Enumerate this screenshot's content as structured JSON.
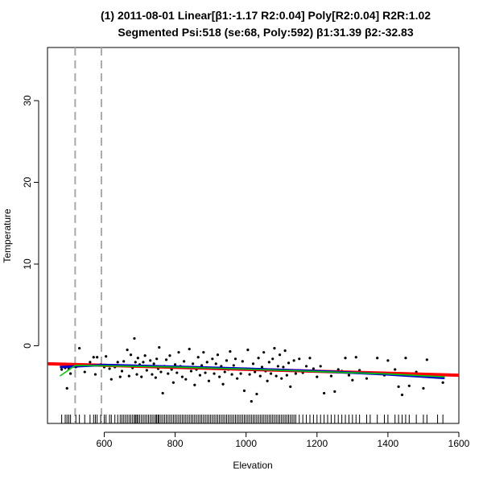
{
  "chart_data": {
    "type": "scatter",
    "title": "(1) 2011-08-01 Linear[β1:-1.17 R2:0.04] Poly[R2:0.04] R2R:1.02",
    "subtitle": "Segmented Psi:518 (se:68, Poly:592) β1:31.39 β2:-32.83",
    "xlabel": "Elevation",
    "ylabel": "Temperature",
    "xlim": [
      440,
      1600
    ],
    "ylim": [
      -9.5,
      36.5
    ],
    "xticks": [
      600,
      800,
      1000,
      1200,
      1400,
      1600
    ],
    "yticks": [
      0,
      10,
      20,
      30
    ],
    "grid": false,
    "legend": "none",
    "colors": {
      "points": "#000000",
      "rug": "#000000",
      "linear": "#ff0000",
      "poly": "#0000cc",
      "segmented": "#00cc00",
      "vlines": "#aaaaaa"
    },
    "vlines": [
      518,
      592
    ],
    "points": [
      [
        480,
        -2.9
      ],
      [
        490,
        -2.7
      ],
      [
        495,
        -5.2
      ],
      [
        500,
        -2.8
      ],
      [
        505,
        -3.4
      ],
      [
        520,
        -2.6
      ],
      [
        530,
        -0.3
      ],
      [
        545,
        -3.2
      ],
      [
        560,
        -2.0
      ],
      [
        570,
        -1.4
      ],
      [
        575,
        -3.5
      ],
      [
        580,
        -1.4
      ],
      [
        590,
        -2.3
      ],
      [
        600,
        -2.6
      ],
      [
        605,
        -1.3
      ],
      [
        615,
        -2.8
      ],
      [
        620,
        -4.1
      ],
      [
        630,
        -2.6
      ],
      [
        638,
        -2.0
      ],
      [
        645,
        -3.8
      ],
      [
        650,
        -3.1
      ],
      [
        655,
        -1.9
      ],
      [
        660,
        -2.5
      ],
      [
        665,
        -0.5
      ],
      [
        670,
        -3.7
      ],
      [
        675,
        -1.1
      ],
      [
        680,
        -2.7
      ],
      [
        685,
        0.9
      ],
      [
        688,
        -2.0
      ],
      [
        692,
        -3.5
      ],
      [
        695,
        -1.5
      ],
      [
        700,
        -2.3
      ],
      [
        705,
        -3.8
      ],
      [
        710,
        -2.0
      ],
      [
        715,
        -1.2
      ],
      [
        720,
        -3.0
      ],
      [
        725,
        -2.5
      ],
      [
        730,
        -1.8
      ],
      [
        735,
        -3.5
      ],
      [
        740,
        -2.2
      ],
      [
        745,
        -3.9
      ],
      [
        748,
        -1.6
      ],
      [
        752,
        -2.8
      ],
      [
        755,
        -0.2
      ],
      [
        760,
        -3.2
      ],
      [
        765,
        -5.8
      ],
      [
        770,
        -2.5
      ],
      [
        775,
        -1.7
      ],
      [
        780,
        -3.4
      ],
      [
        785,
        -1.2
      ],
      [
        790,
        -2.9
      ],
      [
        795,
        -4.5
      ],
      [
        800,
        -2.3
      ],
      [
        805,
        -3.3
      ],
      [
        810,
        -0.8
      ],
      [
        815,
        -2.5
      ],
      [
        820,
        -3.8
      ],
      [
        825,
        -1.9
      ],
      [
        830,
        -4.1
      ],
      [
        835,
        -2.6
      ],
      [
        840,
        -0.4
      ],
      [
        845,
        -3.1
      ],
      [
        850,
        -2.2
      ],
      [
        855,
        -4.8
      ],
      [
        860,
        -2.9
      ],
      [
        865,
        -1.4
      ],
      [
        870,
        -3.6
      ],
      [
        875,
        -2.4
      ],
      [
        880,
        -0.8
      ],
      [
        885,
        -3.3
      ],
      [
        890,
        -2.0
      ],
      [
        895,
        -4.3
      ],
      [
        900,
        -2.7
      ],
      [
        905,
        -1.6
      ],
      [
        910,
        -3.4
      ],
      [
        915,
        -2.2
      ],
      [
        920,
        -1.1
      ],
      [
        925,
        -3.8
      ],
      [
        930,
        -2.5
      ],
      [
        935,
        -4.7
      ],
      [
        940,
        -3.2
      ],
      [
        945,
        -1.8
      ],
      [
        950,
        -2.9
      ],
      [
        955,
        -0.7
      ],
      [
        960,
        -3.5
      ],
      [
        965,
        -2.4
      ],
      [
        970,
        -1.6
      ],
      [
        975,
        -4.0
      ],
      [
        980,
        -2.9
      ],
      [
        985,
        -3.4
      ],
      [
        990,
        -1.9
      ],
      [
        995,
        -5.5
      ],
      [
        1000,
        -2.8
      ],
      [
        1005,
        -0.5
      ],
      [
        1010,
        -3.5
      ],
      [
        1015,
        -6.8
      ],
      [
        1020,
        -2.2
      ],
      [
        1025,
        -3.2
      ],
      [
        1030,
        -5.9
      ],
      [
        1035,
        -1.5
      ],
      [
        1040,
        -3.7
      ],
      [
        1045,
        -2.6
      ],
      [
        1050,
        -0.8
      ],
      [
        1055,
        -3.1
      ],
      [
        1060,
        -4.3
      ],
      [
        1065,
        -2.0
      ],
      [
        1070,
        -3.4
      ],
      [
        1075,
        -1.6
      ],
      [
        1080,
        -0.3
      ],
      [
        1085,
        -3.7
      ],
      [
        1090,
        -2.5
      ],
      [
        1095,
        -1.1
      ],
      [
        1100,
        -4.0
      ],
      [
        1105,
        -2.6
      ],
      [
        1110,
        -0.6
      ],
      [
        1115,
        -3.6
      ],
      [
        1120,
        -2.1
      ],
      [
        1125,
        -5.0
      ],
      [
        1130,
        -3.0
      ],
      [
        1135,
        -1.8
      ],
      [
        1140,
        -3.4
      ],
      [
        1150,
        -1.6
      ],
      [
        1160,
        -3.3
      ],
      [
        1170,
        -2.5
      ],
      [
        1180,
        -1.5
      ],
      [
        1190,
        -2.8
      ],
      [
        1200,
        -3.8
      ],
      [
        1210,
        -2.5
      ],
      [
        1220,
        -5.8
      ],
      [
        1230,
        -3.2
      ],
      [
        1240,
        -3.7
      ],
      [
        1250,
        -5.6
      ],
      [
        1260,
        -2.9
      ],
      [
        1270,
        -3.1
      ],
      [
        1280,
        -1.5
      ],
      [
        1290,
        -3.6
      ],
      [
        1300,
        -4.2
      ],
      [
        1310,
        -1.4
      ],
      [
        1320,
        -3.0
      ],
      [
        1340,
        -4.0
      ],
      [
        1350,
        -3.3
      ],
      [
        1370,
        -1.5
      ],
      [
        1390,
        -3.6
      ],
      [
        1400,
        -1.8
      ],
      [
        1420,
        -2.9
      ],
      [
        1430,
        -5.0
      ],
      [
        1440,
        -6.0
      ],
      [
        1450,
        -1.5
      ],
      [
        1460,
        -4.9
      ],
      [
        1480,
        -3.2
      ],
      [
        1500,
        -5.2
      ],
      [
        1510,
        -1.7
      ],
      [
        1540,
        -3.8
      ],
      [
        1555,
        -4.5
      ]
    ],
    "rug": [
      480,
      490,
      495,
      500,
      505,
      520,
      530,
      545,
      560,
      570,
      575,
      580,
      590,
      600,
      605,
      615,
      620,
      630,
      638,
      645,
      650,
      655,
      660,
      665,
      670,
      675,
      680,
      685,
      688,
      692,
      695,
      700,
      705,
      710,
      715,
      720,
      725,
      730,
      735,
      740,
      745,
      748,
      752,
      755,
      760,
      765,
      770,
      775,
      780,
      785,
      790,
      795,
      800,
      805,
      810,
      815,
      820,
      825,
      830,
      835,
      840,
      845,
      850,
      855,
      860,
      865,
      870,
      875,
      880,
      885,
      890,
      895,
      900,
      905,
      910,
      915,
      920,
      925,
      930,
      935,
      940,
      945,
      950,
      955,
      960,
      965,
      970,
      975,
      980,
      985,
      990,
      995,
      1000,
      1005,
      1010,
      1015,
      1020,
      1025,
      1030,
      1035,
      1040,
      1045,
      1050,
      1055,
      1060,
      1065,
      1070,
      1075,
      1080,
      1085,
      1090,
      1095,
      1100,
      1105,
      1110,
      1115,
      1120,
      1125,
      1130,
      1135,
      1140,
      1150,
      1160,
      1170,
      1180,
      1190,
      1200,
      1210,
      1220,
      1230,
      1240,
      1250,
      1260,
      1270,
      1280,
      1290,
      1300,
      1310,
      1320,
      1340,
      1350,
      1370,
      1390,
      1400,
      1420,
      1430,
      1440,
      1450,
      1460,
      1480,
      1500,
      1510,
      1540,
      1555
    ],
    "lines": {
      "linear": [
        [
          440,
          -2.2
        ],
        [
          1600,
          -3.6
        ]
      ],
      "poly": [
        [
          475,
          -2.6
        ],
        [
          600,
          -2.35
        ],
        [
          800,
          -2.55
        ],
        [
          1000,
          -2.8
        ],
        [
          1200,
          -3.1
        ],
        [
          1400,
          -3.5
        ],
        [
          1560,
          -3.95
        ]
      ],
      "segmented": [
        [
          475,
          -3.7
        ],
        [
          518,
          -2.4
        ],
        [
          600,
          -2.45
        ],
        [
          800,
          -2.6
        ],
        [
          1000,
          -2.85
        ],
        [
          1200,
          -3.15
        ],
        [
          1400,
          -3.45
        ],
        [
          1560,
          -3.8
        ]
      ]
    }
  }
}
